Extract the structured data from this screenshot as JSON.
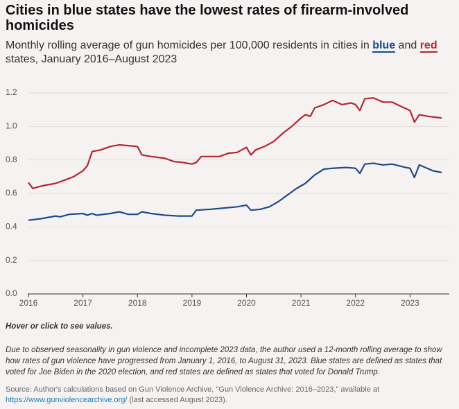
{
  "chart_data": {
    "type": "line",
    "title": "Cities in blue states have the lowest rates of firearm-involved homicides",
    "subtitle_start": "Monthly rolling average of gun homicides per 100,000 residents in cities in",
    "subtitle_join": "and",
    "subtitle_end": "states, January 2016–August 2023",
    "xlim": [
      2016,
      2023.72
    ],
    "xticks": [
      2016,
      2017,
      2018,
      2019,
      2020,
      2021,
      2022,
      2023
    ],
    "ylim": [
      0,
      1.2
    ],
    "yticks": [
      {
        "value": 0,
        "label": "0.0"
      },
      0.2,
      0.4,
      0.6,
      0.8,
      {
        "value": 1,
        "label": "1.0"
      },
      1.2
    ],
    "grid": true,
    "series": [
      {
        "name": "blue",
        "color": "#1b4a8c",
        "x": [
          2016,
          2016.25,
          2016.5,
          2016.58,
          2016.75,
          2017,
          2017.08,
          2017.17,
          2017.25,
          2017.5,
          2017.67,
          2017.83,
          2018,
          2018.08,
          2018.25,
          2018.5,
          2018.75,
          2019,
          2019.08,
          2019.33,
          2019.5,
          2019.83,
          2020,
          2020.08,
          2020.25,
          2020.42,
          2020.58,
          2020.75,
          2020.92,
          2021.08,
          2021.25,
          2021.42,
          2021.58,
          2021.83,
          2022,
          2022.08,
          2022.17,
          2022.33,
          2022.5,
          2022.67,
          2022.92,
          2023,
          2023.08,
          2023.17,
          2023.42,
          2023.58
        ],
        "values": [
          0.44,
          0.45,
          0.465,
          0.46,
          0.475,
          0.48,
          0.47,
          0.48,
          0.47,
          0.48,
          0.49,
          0.475,
          0.475,
          0.49,
          0.48,
          0.47,
          0.465,
          0.465,
          0.5,
          0.505,
          0.51,
          0.52,
          0.53,
          0.5,
          0.505,
          0.52,
          0.55,
          0.59,
          0.63,
          0.66,
          0.71,
          0.745,
          0.75,
          0.755,
          0.75,
          0.72,
          0.775,
          0.78,
          0.77,
          0.775,
          0.755,
          0.75,
          0.695,
          0.77,
          0.735,
          0.725
        ]
      },
      {
        "name": "red",
        "color": "#b3272d",
        "x": [
          2016,
          2016.08,
          2016.25,
          2016.5,
          2016.67,
          2016.83,
          2017,
          2017.08,
          2017.17,
          2017.33,
          2017.5,
          2017.67,
          2017.83,
          2018,
          2018.08,
          2018.25,
          2018.5,
          2018.67,
          2018.83,
          2019,
          2019.08,
          2019.17,
          2019.33,
          2019.5,
          2019.67,
          2019.83,
          2020,
          2020.08,
          2020.17,
          2020.33,
          2020.5,
          2020.67,
          2020.83,
          2021,
          2021.08,
          2021.17,
          2021.25,
          2021.42,
          2021.58,
          2021.75,
          2021.92,
          2022,
          2022.08,
          2022.17,
          2022.33,
          2022.5,
          2022.67,
          2022.83,
          2023,
          2023.08,
          2023.17,
          2023.33,
          2023.58
        ],
        "values": [
          0.665,
          0.63,
          0.645,
          0.66,
          0.68,
          0.7,
          0.735,
          0.765,
          0.85,
          0.86,
          0.88,
          0.89,
          0.885,
          0.88,
          0.83,
          0.82,
          0.81,
          0.79,
          0.785,
          0.775,
          0.785,
          0.82,
          0.82,
          0.82,
          0.84,
          0.845,
          0.875,
          0.83,
          0.86,
          0.88,
          0.91,
          0.96,
          1.0,
          1.05,
          1.07,
          1.06,
          1.11,
          1.13,
          1.155,
          1.13,
          1.14,
          1.13,
          1.095,
          1.165,
          1.17,
          1.145,
          1.145,
          1.12,
          1.095,
          1.025,
          1.07,
          1.06,
          1.05
        ]
      }
    ],
    "hint": "Hover or click to see values.",
    "note": "Due to observed seasonality in gun violence and incomplete 2023 data, the author used a 12-month rolling average to show how rates of gun violence have progressed from January 1, 2016, to August 31, 2023. Blue states are defined as states that voted for Joe Biden in the 2020 election, and red states are defined as states that voted for Donald Trump.",
    "source_start": "Source: Author's calculations based on Gun Violence Archive, \"Gun Violence Archive: 2016–2023,\" available at",
    "source_link": "https://www.gunviolencearchive.org/",
    "source_end": "(last accessed August 2023)."
  }
}
